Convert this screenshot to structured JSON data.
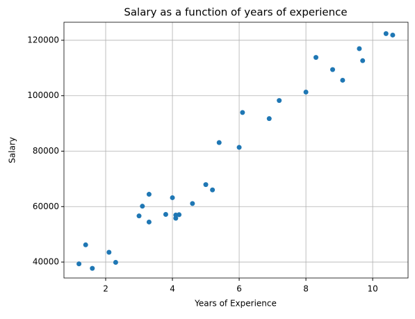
{
  "chart_data": {
    "type": "scatter",
    "title": "Salary as a function of years of experience",
    "x_label": "Years of Experience",
    "y_label": "Salary",
    "x": [
      1.2,
      1.4,
      1.6,
      2.1,
      2.3,
      3.0,
      3.1,
      3.3,
      3.3,
      3.8,
      4.0,
      4.1,
      4.1,
      4.2,
      4.6,
      5.0,
      5.2,
      5.4,
      6.0,
      6.1,
      6.9,
      7.2,
      8.0,
      8.3,
      8.8,
      9.1,
      9.6,
      9.7,
      10.4,
      10.6
    ],
    "values": [
      39343,
      46205,
      37731,
      43525,
      39891,
      56642,
      60150,
      54445,
      64445,
      57189,
      63218,
      55794,
      56957,
      57081,
      61111,
      67938,
      66029,
      83088,
      81363,
      93940,
      91738,
      98273,
      101302,
      113812,
      109431,
      105582,
      116969,
      112635,
      122391,
      121872
    ],
    "color": "#1f77b4",
    "xlim": [
      0.75,
      11.06
    ],
    "xticks": [
      2,
      4,
      6,
      8,
      10
    ],
    "ylim": [
      34250,
      126500
    ],
    "yticks": [
      40000,
      60000,
      80000,
      100000,
      120000
    ],
    "grid": true
  }
}
